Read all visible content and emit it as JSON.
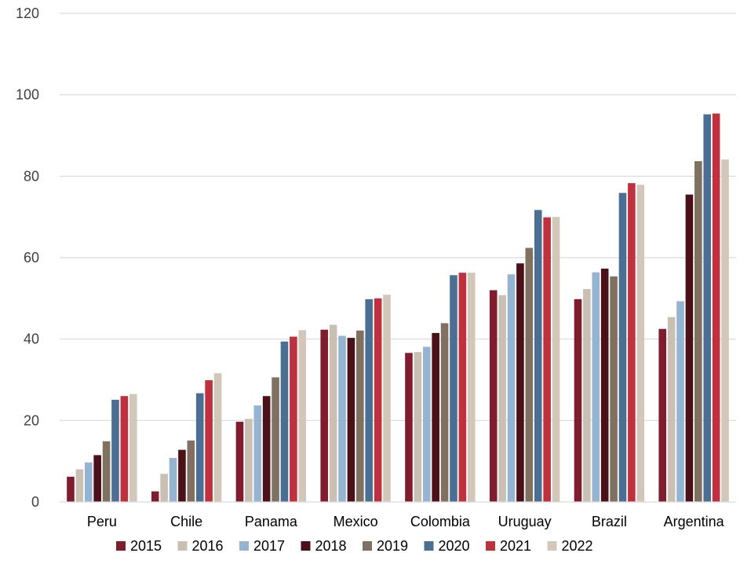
{
  "chart_data": {
    "type": "bar",
    "title": "",
    "xlabel": "",
    "ylabel": "",
    "ylim": [
      0,
      120
    ],
    "yticks": [
      0,
      20,
      40,
      60,
      80,
      100,
      120
    ],
    "grid": true,
    "legend_position": "bottom",
    "categories": [
      "Peru",
      "Chile",
      "Panama",
      "Mexico",
      "Colombia",
      "Uruguay",
      "Brazil",
      "Argentina"
    ],
    "series": [
      {
        "name": "2015",
        "color": "#7f1d2e",
        "values": [
          6.2,
          2.6,
          19.7,
          42.3,
          36.6,
          52.0,
          49.8,
          42.5
        ]
      },
      {
        "name": "2016",
        "color": "#c9bfb2",
        "values": [
          8.0,
          6.9,
          20.4,
          43.5,
          36.8,
          50.8,
          52.3,
          45.4
        ]
      },
      {
        "name": "2017",
        "color": "#94b4d2",
        "values": [
          9.7,
          10.8,
          23.7,
          40.8,
          38.1,
          55.9,
          56.4,
          49.3
        ]
      },
      {
        "name": "2018",
        "color": "#4a1218",
        "values": [
          11.5,
          12.8,
          26.0,
          40.3,
          41.5,
          58.6,
          57.3,
          75.5
        ]
      },
      {
        "name": "2019",
        "color": "#7f7060",
        "values": [
          14.9,
          15.1,
          30.6,
          42.1,
          43.9,
          62.4,
          55.4,
          83.7
        ]
      },
      {
        "name": "2020",
        "color": "#4a6f92",
        "values": [
          25.1,
          26.7,
          39.4,
          49.8,
          55.7,
          71.7,
          75.9,
          95.2
        ]
      },
      {
        "name": "2021",
        "color": "#c0313f",
        "values": [
          26.0,
          29.9,
          40.6,
          50.0,
          56.3,
          69.9,
          78.3,
          95.4
        ]
      },
      {
        "name": "2022",
        "color": "#d3c7ba",
        "values": [
          26.5,
          31.6,
          42.2,
          50.9,
          56.3,
          70.0,
          77.9,
          84.1
        ]
      }
    ]
  }
}
